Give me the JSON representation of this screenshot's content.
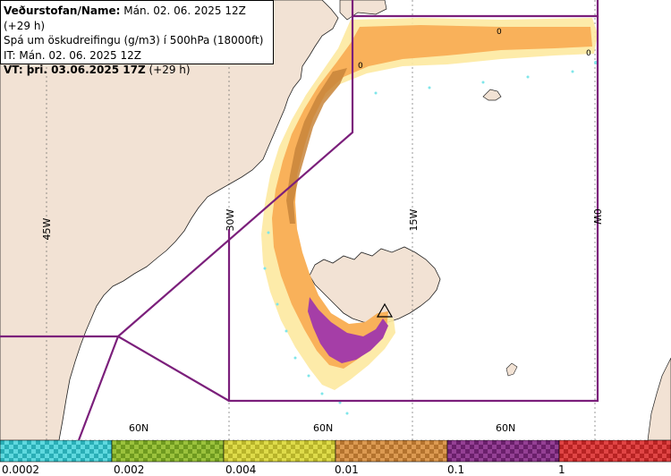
{
  "info": {
    "line1_label": "Veðurstofan/Name:",
    "line1_value": " Mán. 02. 06. 2025 12Z (+29 h)",
    "line2": "Spá um öskudreifingu (g/m3) í 500hPa (18000ft)",
    "line3": "IT: Mán. 02. 06. 2025 12Z",
    "line4_label": "VT: þri. 03.06.2025 17Z",
    "line4_value": " (+29 h)"
  },
  "grid": {
    "meridians": [
      "45W",
      "30W",
      "15W",
      "0W"
    ],
    "parallels": [
      "60N",
      "60N",
      "60N"
    ]
  },
  "contour_labels": [
    "0",
    "0",
    "0"
  ],
  "legend": {
    "colors": [
      "#2ec5cd",
      "#7fa826",
      "#c9c633",
      "#c9843b",
      "#7b2a7c",
      "#c92d2d"
    ],
    "thresholds": [
      "0.0002",
      "0.002",
      "0.004",
      "0.01",
      "0.1",
      "1"
    ]
  }
}
